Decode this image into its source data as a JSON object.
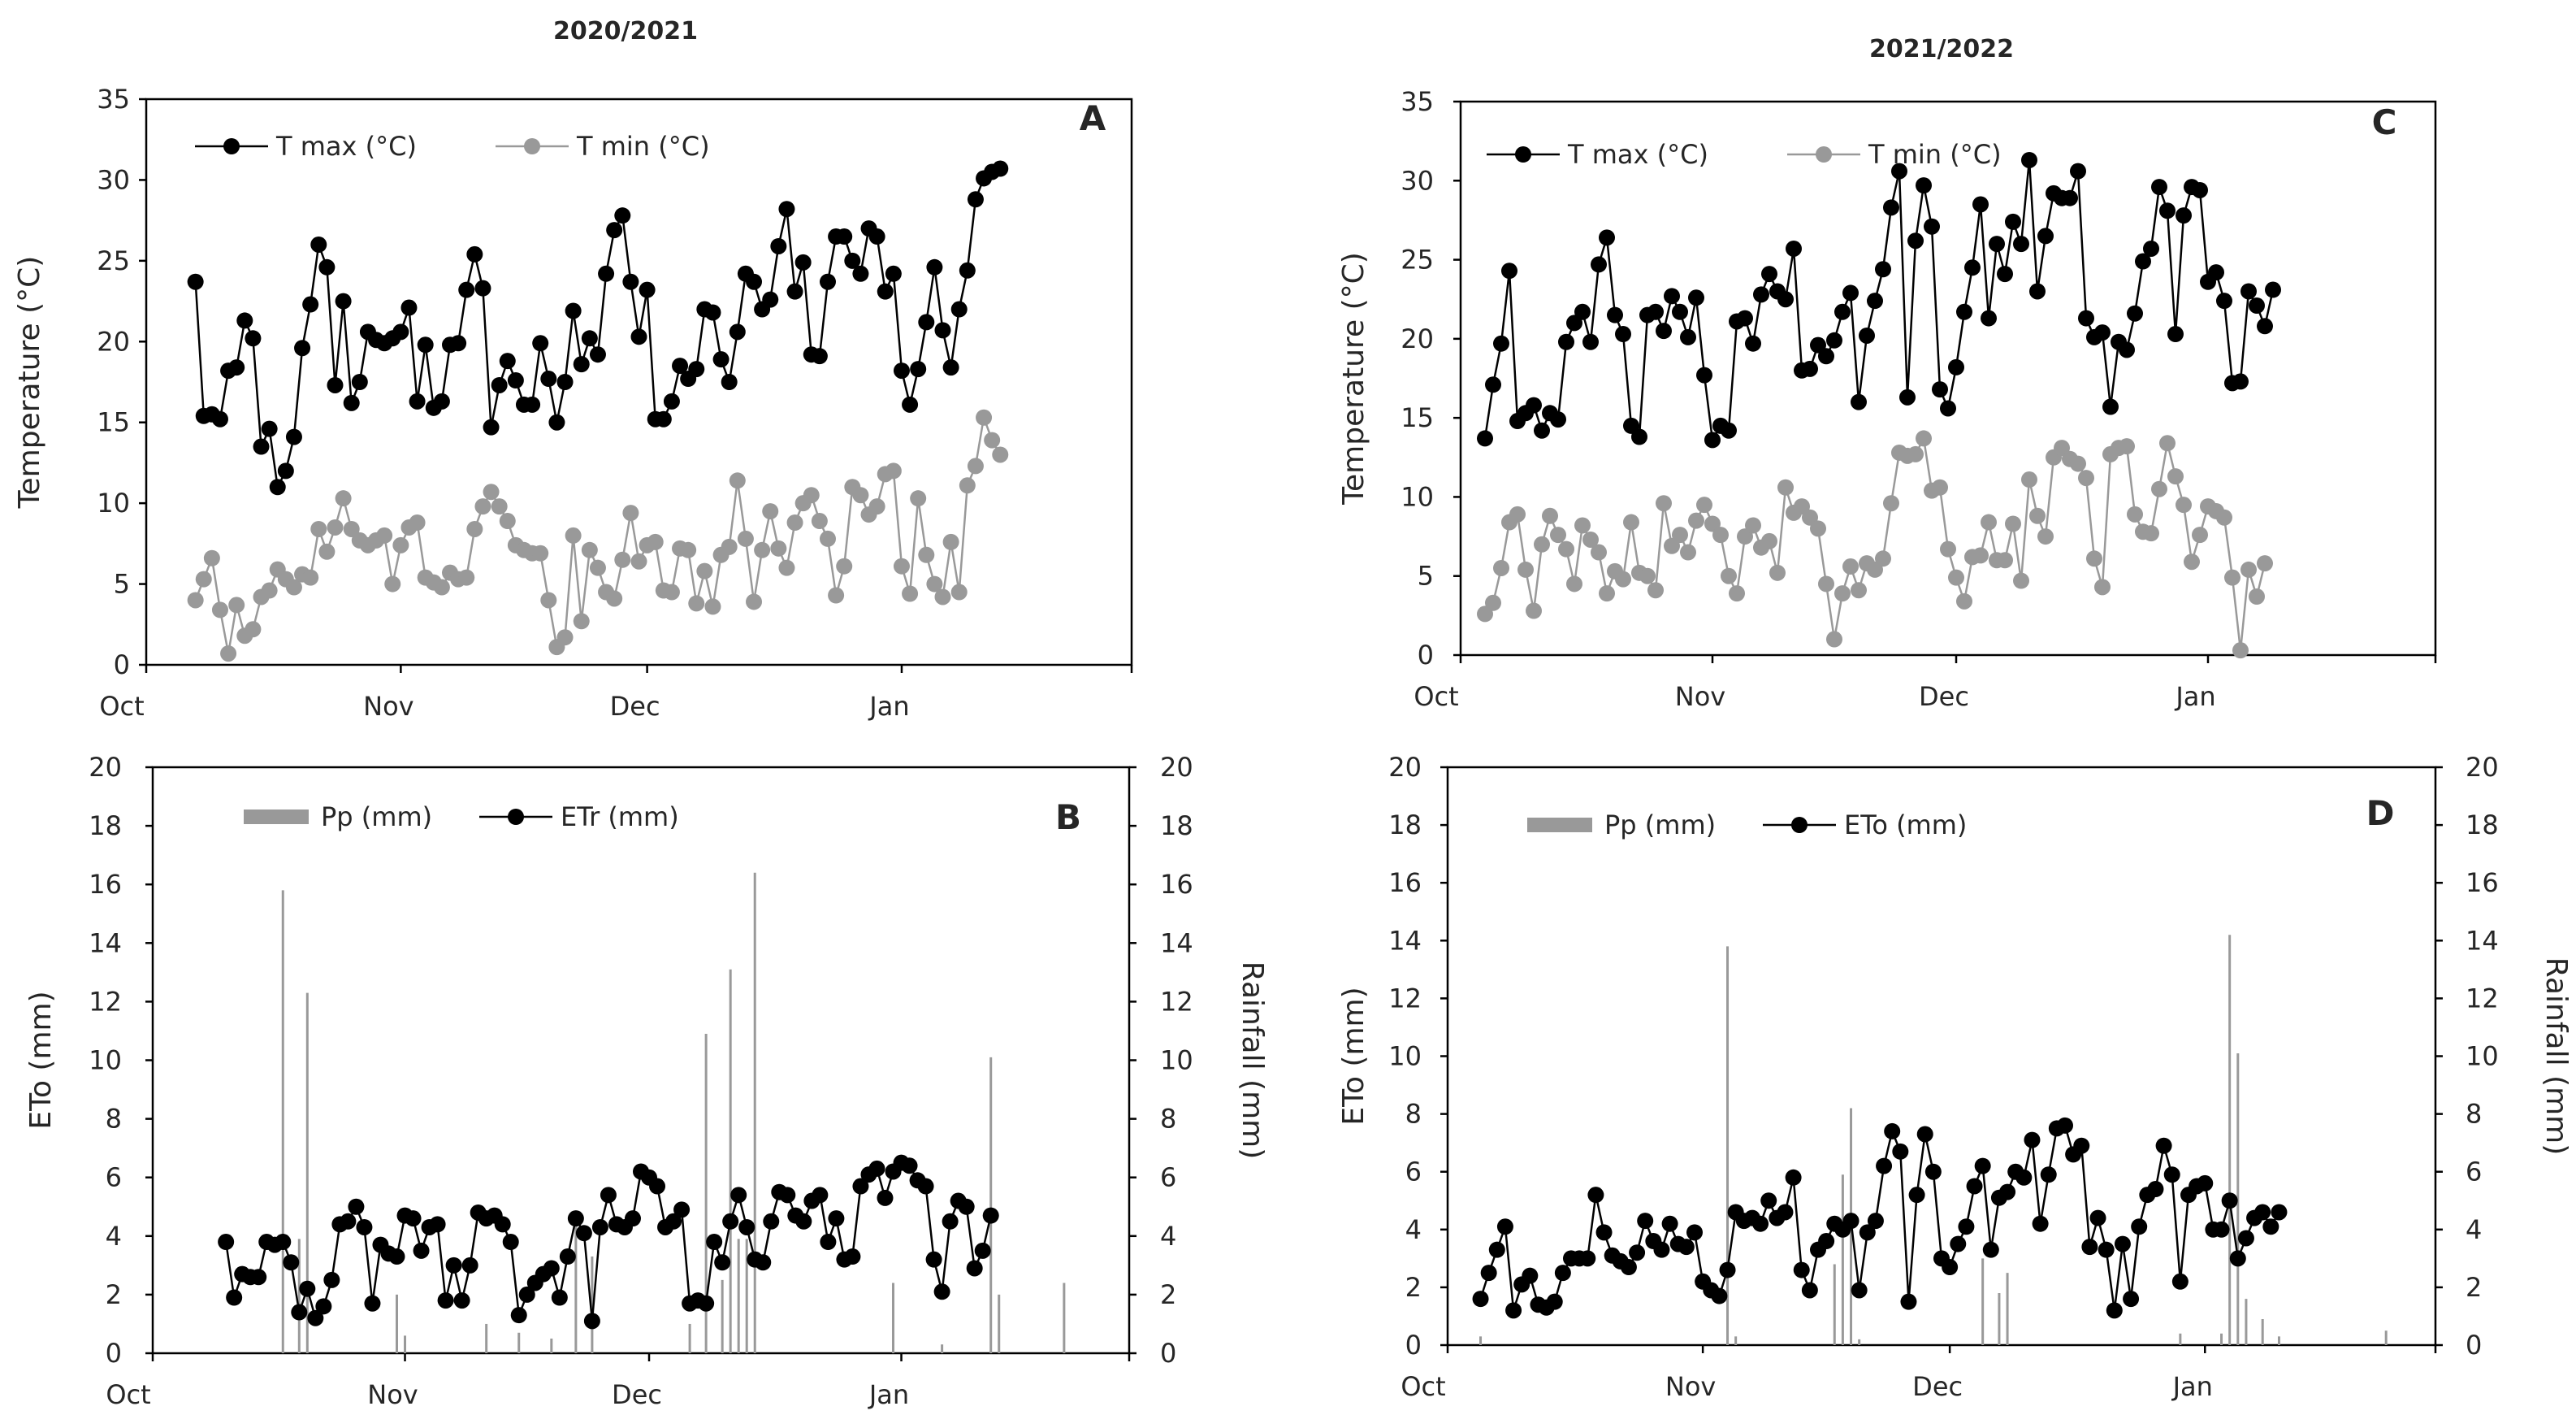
{
  "figure": {
    "season_titles": [
      "2020/2021",
      "2021/2022"
    ]
  },
  "chart_data": [
    {
      "id": "A",
      "panel_label": "A",
      "type": "line",
      "x_tick_labels": [
        "Oct",
        "Nov",
        "Dec",
        "Jan"
      ],
      "x_range_days": [
        0,
        120
      ],
      "ylabel": "Temperature (°C)",
      "ylim": [
        0,
        35
      ],
      "y_ticks": [
        0,
        5,
        10,
        15,
        20,
        25,
        30,
        35
      ],
      "legend_position": "top-left",
      "colors": {
        "tmax": "#000000",
        "tmin": "#999999"
      },
      "x_start_day": 6,
      "series": [
        {
          "name": "T max (°C)",
          "values": [
            23.7,
            15.4,
            15.5,
            15.2,
            18.2,
            18.4,
            21.3,
            20.2,
            13.5,
            14.6,
            11.0,
            12.0,
            14.1,
            19.6,
            22.3,
            26.0,
            24.6,
            17.3,
            22.5,
            16.2,
            17.5,
            20.6,
            20.1,
            19.9,
            20.2,
            20.6,
            22.1,
            16.3,
            19.8,
            15.9,
            16.3,
            19.8,
            19.9,
            23.2,
            25.4,
            23.3,
            14.7,
            17.3,
            18.8,
            17.6,
            16.1,
            16.1,
            19.9,
            17.7,
            15.0,
            17.5,
            21.9,
            18.6,
            20.2,
            19.2,
            24.2,
            26.9,
            27.8,
            23.7,
            20.3,
            23.2,
            15.2,
            15.2,
            16.3,
            18.5,
            17.7,
            18.3,
            22.0,
            21.8,
            18.9,
            17.5,
            20.6,
            24.2,
            23.7,
            22.0,
            22.6,
            25.9,
            28.2,
            23.1,
            24.9,
            19.2,
            19.1,
            23.7,
            26.5,
            26.5,
            25.0,
            24.2,
            27.0,
            26.5,
            23.1,
            24.2,
            18.2,
            16.1,
            18.3,
            21.2,
            24.6,
            20.7,
            18.4,
            22.0,
            24.4,
            28.8,
            30.1,
            30.5,
            30.7
          ]
        },
        {
          "name": "T min (°C)",
          "values": [
            4.0,
            5.3,
            6.6,
            3.4,
            0.7,
            3.7,
            1.8,
            2.2,
            4.2,
            4.6,
            5.9,
            5.3,
            4.8,
            5.6,
            5.4,
            8.4,
            7.0,
            8.5,
            10.3,
            8.4,
            7.7,
            7.4,
            7.7,
            8.0,
            5.0,
            7.4,
            8.5,
            8.8,
            5.4,
            5.1,
            4.8,
            5.7,
            5.3,
            5.4,
            8.4,
            9.8,
            10.7,
            9.8,
            8.9,
            7.4,
            7.1,
            6.9,
            6.9,
            4.0,
            1.1,
            1.7,
            8.0,
            2.7,
            7.1,
            6.0,
            4.5,
            4.1,
            6.5,
            9.4,
            6.4,
            7.4,
            7.6,
            4.6,
            4.5,
            7.2,
            7.1,
            3.8,
            5.8,
            3.6,
            6.8,
            7.3,
            11.4,
            7.8,
            3.9,
            7.1,
            9.5,
            7.2,
            6.0,
            8.8,
            10.0,
            10.5,
            8.9,
            7.8,
            4.3,
            6.1,
            11.0,
            10.5,
            9.3,
            9.8,
            11.8,
            12.0,
            6.1,
            4.4,
            10.3,
            6.8,
            5.0,
            4.2,
            7.6,
            4.5,
            11.1,
            12.3,
            15.3,
            13.9,
            13.0
          ]
        }
      ]
    },
    {
      "id": "B",
      "panel_label": "B",
      "type": "bar+line",
      "x_tick_labels": [
        "Oct",
        "Nov",
        "Dec",
        "Jan"
      ],
      "x_range_days": [
        0,
        120
      ],
      "ylabel": "ETo (mm)",
      "y2label": "Rainfall (mm)",
      "ylim": [
        0,
        20
      ],
      "y2lim": [
        0,
        20
      ],
      "y_ticks": [
        0,
        2,
        4,
        6,
        8,
        10,
        12,
        14,
        16,
        18,
        20
      ],
      "legend_position": "top-left",
      "colors": {
        "pp": "#999999",
        "et": "#000000"
      },
      "x_start_day": 9,
      "series": [
        {
          "name": "ETr (mm)",
          "values": [
            3.8,
            1.9,
            2.7,
            2.6,
            2.6,
            3.8,
            3.7,
            3.8,
            3.1,
            1.4,
            2.2,
            1.2,
            1.6,
            2.5,
            4.4,
            4.5,
            5.0,
            4.3,
            1.7,
            3.7,
            3.4,
            3.3,
            4.7,
            4.6,
            3.5,
            4.3,
            4.4,
            1.8,
            3.0,
            1.8,
            3.0,
            4.8,
            4.6,
            4.7,
            4.4,
            3.8,
            1.3,
            2.0,
            2.4,
            2.7,
            2.9,
            1.9,
            3.3,
            4.6,
            4.1,
            1.1,
            4.3,
            5.4,
            4.4,
            4.3,
            4.6,
            6.2,
            6.0,
            5.7,
            4.3,
            4.5,
            4.9,
            1.7,
            1.8,
            1.7,
            3.8,
            3.1,
            4.5,
            5.4,
            4.3,
            3.2,
            3.1,
            4.5,
            5.5,
            5.4,
            4.7,
            4.5,
            5.2,
            5.4,
            3.8,
            4.6,
            3.2,
            3.3,
            5.7,
            6.1,
            6.3,
            5.3,
            6.2,
            6.5,
            6.4,
            5.9,
            5.7,
            3.2,
            2.1,
            4.5,
            5.2,
            5.0,
            2.9,
            3.5,
            4.7
          ]
        },
        {
          "name": "Pp (mm)",
          "values": [
            [
              16.0,
              15.8
            ],
            [
              18.0,
              3.9
            ],
            [
              19.0,
              12.3
            ],
            [
              30.0,
              2.0
            ],
            [
              31.0,
              0.6
            ],
            [
              41.0,
              1.0
            ],
            [
              45.0,
              0.7
            ],
            [
              49.0,
              0.5
            ],
            [
              52.0,
              4.8
            ],
            [
              54.0,
              3.3
            ],
            [
              66.0,
              1.0
            ],
            [
              68.0,
              10.9
            ],
            [
              70.0,
              2.5
            ],
            [
              71.0,
              13.1
            ],
            [
              72.0,
              3.9
            ],
            [
              73.0,
              3.9
            ],
            [
              74.0,
              16.4
            ],
            [
              91.0,
              2.4
            ],
            [
              97.0,
              0.3
            ],
            [
              103.0,
              10.1
            ],
            [
              104.0,
              2.0
            ],
            [
              112.0,
              2.4
            ]
          ]
        }
      ]
    },
    {
      "id": "C",
      "panel_label": "C",
      "type": "line",
      "x_tick_labels": [
        "Oct",
        "Nov",
        "Dec",
        "Jan"
      ],
      "x_range_days": [
        0,
        120
      ],
      "ylabel": "Temperature  (°C)",
      "ylim": [
        0,
        35
      ],
      "y_ticks": [
        0,
        5,
        10,
        15,
        20,
        25,
        30,
        35
      ],
      "legend_position": "top-left",
      "colors": {
        "tmax": "#000000",
        "tmin": "#999999"
      },
      "x_start_day": 3,
      "series": [
        {
          "name": "T max (°C)",
          "values": [
            13.7,
            17.1,
            19.7,
            24.3,
            14.8,
            15.3,
            15.8,
            14.2,
            15.3,
            14.9,
            19.8,
            21.0,
            21.7,
            19.8,
            24.7,
            26.4,
            21.5,
            20.3,
            14.5,
            13.8,
            21.5,
            21.7,
            20.5,
            22.7,
            21.7,
            20.1,
            22.6,
            17.7,
            13.6,
            14.5,
            14.2,
            21.1,
            21.3,
            19.7,
            22.8,
            24.1,
            23.0,
            22.5,
            25.7,
            18.0,
            18.1,
            19.6,
            18.9,
            19.9,
            21.7,
            22.9,
            16.0,
            20.2,
            22.4,
            24.4,
            28.3,
            30.6,
            16.3,
            26.2,
            29.7,
            27.1,
            16.8,
            15.6,
            18.2,
            21.7,
            24.5,
            28.5,
            21.3,
            26.0,
            24.1,
            27.4,
            26.0,
            31.3,
            23.0,
            26.5,
            29.2,
            28.9,
            28.9,
            30.6,
            21.3,
            20.1,
            20.4,
            15.7,
            19.8,
            19.3,
            21.6,
            24.9,
            25.7,
            29.6,
            28.1,
            20.3,
            27.8,
            29.6,
            29.4,
            23.6,
            24.2,
            22.4,
            17.2,
            17.3,
            23.0,
            22.1,
            20.8,
            23.1
          ]
        },
        {
          "name": "T min (°C)",
          "values": [
            2.6,
            3.3,
            5.5,
            8.4,
            8.9,
            5.4,
            2.8,
            7.0,
            8.8,
            7.6,
            6.7,
            4.5,
            8.2,
            7.3,
            6.5,
            3.9,
            5.3,
            4.8,
            8.4,
            5.2,
            5.0,
            4.1,
            9.6,
            6.9,
            7.6,
            6.5,
            8.5,
            9.5,
            8.3,
            7.6,
            5.0,
            3.9,
            7.5,
            8.2,
            6.8,
            7.2,
            5.2,
            10.6,
            9.0,
            9.4,
            8.7,
            8.0,
            4.5,
            1.0,
            3.9,
            5.6,
            4.1,
            5.8,
            5.4,
            6.1,
            9.6,
            12.8,
            12.6,
            12.7,
            13.7,
            10.4,
            10.6,
            6.7,
            4.9,
            3.4,
            6.2,
            6.3,
            8.4,
            6.0,
            6.0,
            8.3,
            4.7,
            11.1,
            8.8,
            7.5,
            12.5,
            13.1,
            12.4,
            12.1,
            11.2,
            6.1,
            4.3,
            12.7,
            13.1,
            13.2,
            8.9,
            7.8,
            7.7,
            10.5,
            13.4,
            11.3,
            9.5,
            5.9,
            7.6,
            9.4,
            9.1,
            8.7,
            4.9,
            0.3,
            5.4,
            3.7,
            5.8
          ]
        }
      ]
    },
    {
      "id": "D",
      "panel_label": "D",
      "type": "bar+line",
      "x_tick_labels": [
        "Oct",
        "Nov",
        "Dec",
        "Jan"
      ],
      "x_range_days": [
        0,
        120
      ],
      "ylabel": "ETo (mm)",
      "y2label": "Rainfall (mm)",
      "ylim": [
        0,
        20
      ],
      "y2lim": [
        0,
        20
      ],
      "y_ticks": [
        0,
        2,
        4,
        6,
        8,
        10,
        12,
        14,
        16,
        18,
        20
      ],
      "legend_position": "top-left",
      "colors": {
        "pp": "#999999",
        "et": "#000000"
      },
      "x_start_day": 4,
      "series": [
        {
          "name": "ETo (mm)",
          "values": [
            1.6,
            2.5,
            3.3,
            4.1,
            1.2,
            2.1,
            2.4,
            1.4,
            1.3,
            1.5,
            2.5,
            3.0,
            3.0,
            3.0,
            5.2,
            3.9,
            3.1,
            2.9,
            2.7,
            3.2,
            4.3,
            3.6,
            3.3,
            4.2,
            3.5,
            3.4,
            3.9,
            2.2,
            1.9,
            1.7,
            2.6,
            4.6,
            4.3,
            4.4,
            4.2,
            5.0,
            4.4,
            4.6,
            5.8,
            2.6,
            1.9,
            3.3,
            3.6,
            4.2,
            4.0,
            4.3,
            1.9,
            3.9,
            4.3,
            6.2,
            7.4,
            6.7,
            1.5,
            5.2,
            7.3,
            6.0,
            3.0,
            2.7,
            3.5,
            4.1,
            5.5,
            6.2,
            3.3,
            5.1,
            5.3,
            6.0,
            5.8,
            7.1,
            4.2,
            5.9,
            7.5,
            7.6,
            6.6,
            6.9,
            3.4,
            4.4,
            3.3,
            1.2,
            3.5,
            1.6,
            4.1,
            5.2,
            5.4,
            6.9,
            5.9,
            2.2,
            5.2,
            5.5,
            5.6,
            4.0,
            4.0,
            5.0,
            3.0,
            3.7,
            4.4,
            4.6,
            4.1,
            4.6
          ]
        },
        {
          "name": "Pp (mm)",
          "values": [
            [
              4.0,
              0.3
            ],
            [
              34.0,
              13.8
            ],
            [
              35.0,
              0.3
            ],
            [
              47.0,
              2.8
            ],
            [
              48.0,
              5.9
            ],
            [
              49.0,
              8.2
            ],
            [
              50.0,
              0.2
            ],
            [
              65.0,
              3.0
            ],
            [
              67.0,
              1.8
            ],
            [
              68.0,
              2.5
            ],
            [
              89.0,
              0.4
            ],
            [
              94.0,
              0.4
            ],
            [
              95.0,
              14.2
            ],
            [
              96.0,
              10.1
            ],
            [
              97.0,
              1.6
            ],
            [
              99.0,
              0.9
            ],
            [
              101.0,
              0.3
            ],
            [
              114.0,
              0.5
            ]
          ]
        }
      ]
    }
  ]
}
